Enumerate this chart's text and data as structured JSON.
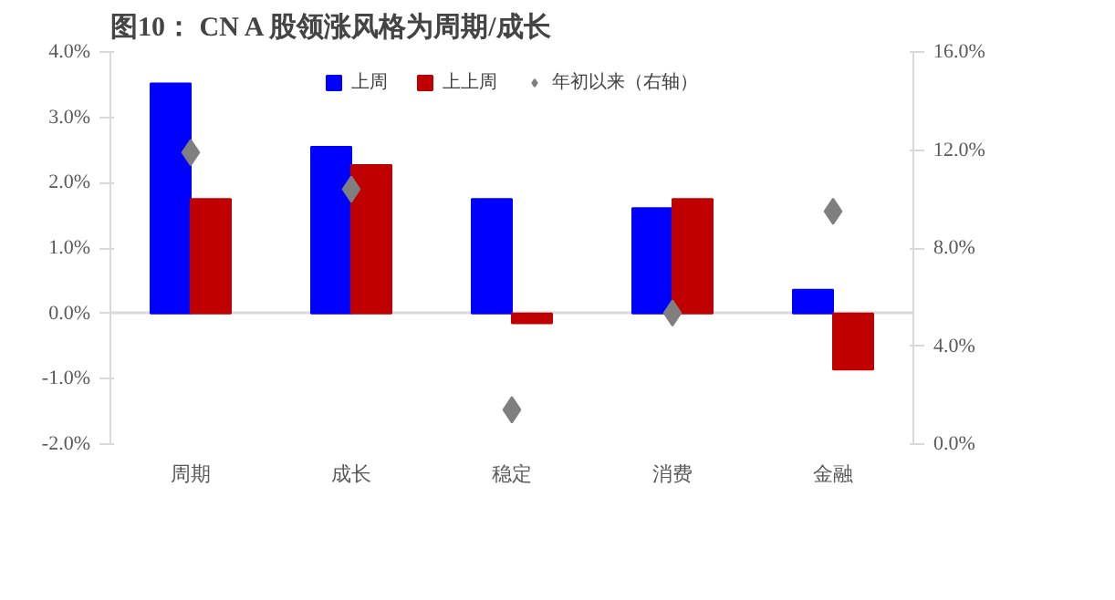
{
  "chart_data": {
    "type": "bar",
    "title": "图10：  CN A 股领涨风格为周期/成长",
    "categories": [
      "周期",
      "成长",
      "稳定",
      "消费",
      "金融"
    ],
    "series": [
      {
        "name": "上周",
        "color": "#0000ff",
        "values": [
          3.52,
          2.55,
          1.75,
          1.61,
          0.36
        ]
      },
      {
        "name": "上上周",
        "color": "#c00000",
        "values": [
          1.75,
          2.27,
          -0.15,
          1.75,
          -0.86
        ]
      },
      {
        "name": "年初以来（右轴）",
        "color": "#7f7f7f",
        "type": "scatter",
        "axis": "y2",
        "marker": "diamond",
        "values": [
          11.9,
          10.4,
          1.4,
          5.35,
          9.5
        ]
      }
    ],
    "ylim": [
      -2,
      4
    ],
    "yticks": [
      {
        "value": -2,
        "label": "-2.0%"
      },
      {
        "value": -1,
        "label": "-1.0%"
      },
      {
        "value": 0,
        "label": "0.0%"
      },
      {
        "value": 1,
        "label": "1.0%"
      },
      {
        "value": 2,
        "label": "2.0%"
      },
      {
        "value": 3,
        "label": "3.0%"
      },
      {
        "value": 4,
        "label": "4.0%"
      }
    ],
    "y2lim": [
      0,
      16
    ],
    "y2ticks": [
      {
        "value": 0,
        "label": "0.0%"
      },
      {
        "value": 4,
        "label": "4.0%"
      },
      {
        "value": 8,
        "label": "8.0%"
      },
      {
        "value": 12,
        "label": "12.0%"
      },
      {
        "value": 16,
        "label": "16.0%"
      }
    ],
    "ref_lines": [
      {
        "axis": "y",
        "value": 0,
        "color": "#d9d9d9"
      }
    ],
    "grid": false,
    "legend": "top"
  }
}
